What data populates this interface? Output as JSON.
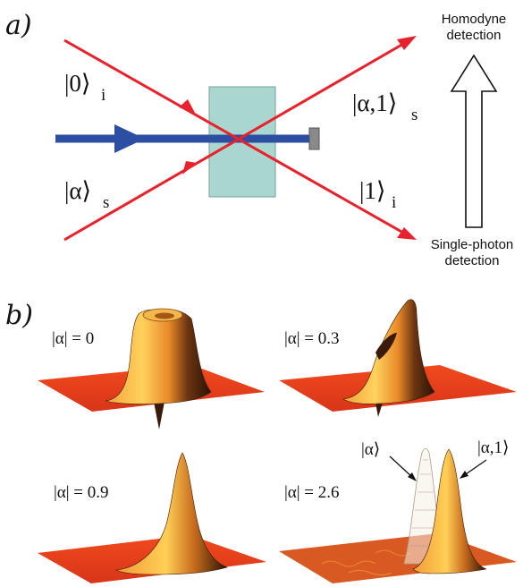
{
  "panel_a": {
    "label": "a)",
    "kets": {
      "idler_in": {
        "main": "|0⟩",
        "sub": "i"
      },
      "signal_in": {
        "main": "|α⟩",
        "sub": "s"
      },
      "signal_out": {
        "main": "|α,1⟩",
        "sub": "s"
      },
      "idler_out": {
        "main": "|1⟩",
        "sub": "i"
      }
    },
    "detection": {
      "top_line1": "Homodyne",
      "top_line2": "detection",
      "bottom_line1": "Single-photon",
      "bottom_line2": "detection"
    },
    "colors": {
      "beams": "#e8222c",
      "pump": "#2c4fa3",
      "crystal": "#a9d6cf"
    }
  },
  "panel_b": {
    "label": "b)",
    "plots": [
      {
        "label": "|α| = 0",
        "amplitude": 0
      },
      {
        "label": "|α| = 0.3",
        "amplitude": 0.3
      },
      {
        "label": "|α| = 0.9",
        "amplitude": 0.9
      },
      {
        "label": "|α| = 2.6",
        "amplitude": 2.6
      }
    ],
    "annotations": {
      "coherent": "|α⟩",
      "photon_added": "|α,1⟩"
    }
  }
}
